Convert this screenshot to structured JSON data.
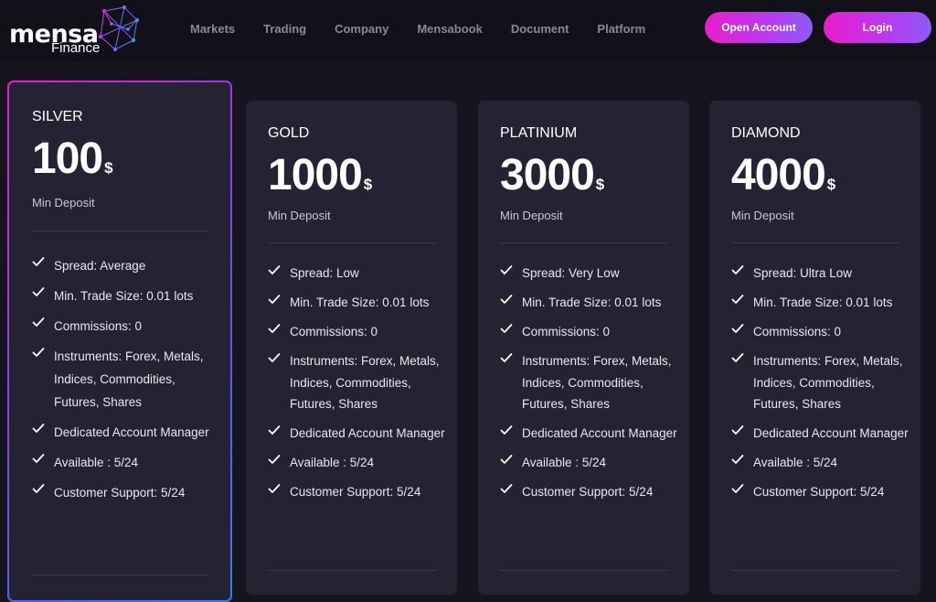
{
  "brand": {
    "name": "mensa",
    "sub": "Finance"
  },
  "nav": [
    "Markets",
    "Trading",
    "Company",
    "Mensabook",
    "Document",
    "Platform"
  ],
  "buttons": {
    "open_account": "Open Account",
    "login": "Login"
  },
  "currency": "$",
  "min_deposit_label": "Min Deposit",
  "plans": [
    {
      "tier": "SILVER",
      "price": "100",
      "features": [
        "Spread: Average",
        "Min. Trade Size: 0.01 lots",
        "Commissions: 0",
        "Instruments: Forex, Metals, Indices, Commodities, Futures, Shares",
        "Dedicated Account Manager",
        "Available : 5/24",
        "Customer Support: 5/24"
      ]
    },
    {
      "tier": "GOLD",
      "price": "1000",
      "features": [
        "Spread: Low",
        "Min. Trade Size: 0.01 lots",
        "Commissions: 0",
        "Instruments: Forex, Metals, Indices, Commodities, Futures, Shares",
        "Dedicated Account Manager",
        "Available : 5/24",
        "Customer Support: 5/24"
      ]
    },
    {
      "tier": "PLATINIUM",
      "price": "3000",
      "features": [
        "Spread: Very Low",
        "Min. Trade Size: 0.01 lots",
        "Commissions: 0",
        "Instruments: Forex, Metals, Indices, Commodities, Futures, Shares",
        "Dedicated Account Manager",
        "Available : 5/24",
        "Customer Support: 5/24"
      ]
    },
    {
      "tier": "DIAMOND",
      "price": "4000",
      "features": [
        "Spread: Ultra Low",
        "Min. Trade Size: 0.01 lots",
        "Commissions: 0",
        "Instruments: Forex, Metals, Indices, Commodities, Futures, Shares",
        "Dedicated Account Manager",
        "Available : 5/24",
        "Customer Support: 5/24"
      ]
    }
  ],
  "icons": {
    "check": "check-icon",
    "logo": "network-globe-icon"
  },
  "colors": {
    "accent_pink": "#e91ecb",
    "accent_purple": "#8b5cf6",
    "accent_blue": "#2f80ed",
    "card_bg": "#252234"
  }
}
